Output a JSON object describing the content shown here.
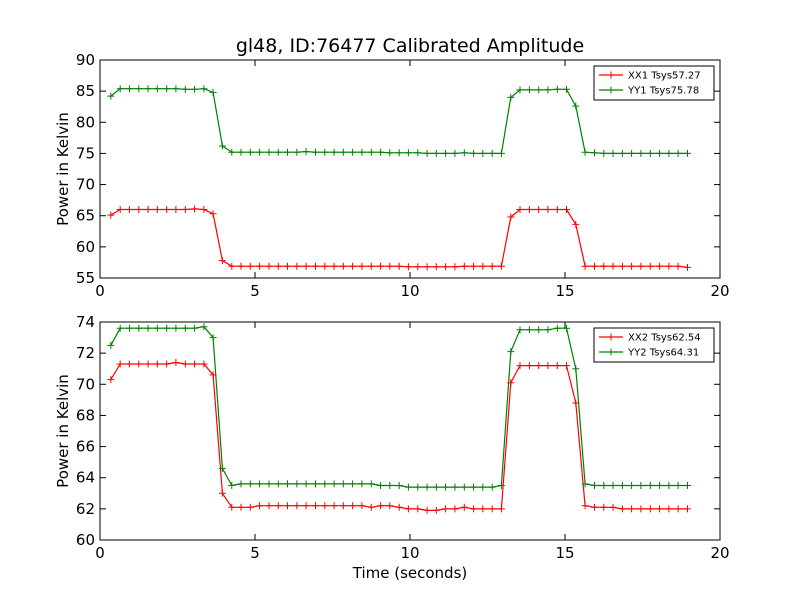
{
  "title": "gl48, ID:76477 Calibrated Amplitude",
  "xlabel": "Time (seconds)",
  "colors": {
    "red": "#ff0000",
    "green": "#008000"
  },
  "chart_data": [
    {
      "type": "line",
      "title": "gl48, ID:76477 Calibrated Amplitude",
      "xlabel": "",
      "ylabel": "Power in Kelvin",
      "xlim": [
        0,
        20
      ],
      "ylim": [
        55,
        90
      ],
      "xticks": [
        0,
        5,
        10,
        15,
        20
      ],
      "yticks": [
        55,
        60,
        65,
        70,
        75,
        80,
        85,
        90
      ],
      "legend_position": "top-right",
      "grid": false,
      "x": [
        0.35,
        0.65,
        0.95,
        1.25,
        1.55,
        1.85,
        2.15,
        2.45,
        2.75,
        3.05,
        3.35,
        3.65,
        3.95,
        4.25,
        4.55,
        4.85,
        5.15,
        5.45,
        5.75,
        6.05,
        6.35,
        6.65,
        6.95,
        7.25,
        7.55,
        7.85,
        8.15,
        8.45,
        8.75,
        9.05,
        9.35,
        9.65,
        9.95,
        10.25,
        10.55,
        10.85,
        11.15,
        11.45,
        11.75,
        12.05,
        12.35,
        12.65,
        12.95,
        13.25,
        13.55,
        13.85,
        14.15,
        14.45,
        14.75,
        15.05,
        15.35,
        15.65,
        15.95,
        16.25,
        16.55,
        16.85,
        17.15,
        17.45,
        17.75,
        18.05,
        18.35,
        18.65,
        18.95
      ],
      "series": [
        {
          "name": "XX1 Tsys57.27",
          "color": "red",
          "values": [
            65.1,
            66.0,
            66.0,
            66.0,
            66.0,
            66.0,
            66.0,
            66.0,
            66.0,
            66.1,
            66.0,
            65.3,
            57.8,
            56.9,
            56.9,
            56.9,
            56.9,
            56.9,
            56.9,
            56.9,
            56.9,
            56.9,
            56.9,
            56.9,
            56.9,
            56.9,
            56.9,
            56.9,
            56.9,
            56.9,
            56.9,
            56.9,
            56.8,
            56.8,
            56.8,
            56.8,
            56.8,
            56.8,
            56.9,
            56.9,
            56.9,
            56.9,
            56.9,
            64.8,
            66.0,
            66.0,
            66.0,
            66.0,
            66.0,
            66.0,
            63.6,
            56.9,
            56.9,
            56.9,
            56.9,
            56.9,
            56.9,
            56.9,
            56.9,
            56.9,
            56.9,
            56.9,
            56.7
          ]
        },
        {
          "name": "YY1 Tsys75.78",
          "color": "green",
          "values": [
            84.2,
            85.4,
            85.4,
            85.4,
            85.4,
            85.4,
            85.4,
            85.4,
            85.3,
            85.3,
            85.4,
            84.8,
            76.2,
            75.2,
            75.2,
            75.2,
            75.2,
            75.2,
            75.2,
            75.2,
            75.2,
            75.3,
            75.2,
            75.2,
            75.2,
            75.2,
            75.2,
            75.2,
            75.2,
            75.2,
            75.1,
            75.1,
            75.1,
            75.1,
            75.0,
            75.0,
            75.0,
            75.0,
            75.1,
            75.0,
            75.0,
            75.0,
            75.0,
            84.0,
            85.2,
            85.2,
            85.2,
            85.2,
            85.3,
            85.3,
            82.6,
            75.2,
            75.1,
            75.0,
            75.0,
            75.0,
            75.0,
            75.0,
            75.0,
            75.0,
            75.0,
            75.0,
            75.0
          ]
        }
      ]
    },
    {
      "type": "line",
      "title": "",
      "xlabel": "Time (seconds)",
      "ylabel": "Power in Kelvin",
      "xlim": [
        0,
        20
      ],
      "ylim": [
        60,
        74
      ],
      "xticks": [
        0,
        5,
        10,
        15,
        20
      ],
      "yticks": [
        60,
        62,
        64,
        66,
        68,
        70,
        72,
        74
      ],
      "legend_position": "top-right",
      "grid": false,
      "x": [
        0.35,
        0.65,
        0.95,
        1.25,
        1.55,
        1.85,
        2.15,
        2.45,
        2.75,
        3.05,
        3.35,
        3.65,
        3.95,
        4.25,
        4.55,
        4.85,
        5.15,
        5.45,
        5.75,
        6.05,
        6.35,
        6.65,
        6.95,
        7.25,
        7.55,
        7.85,
        8.15,
        8.45,
        8.75,
        9.05,
        9.35,
        9.65,
        9.95,
        10.25,
        10.55,
        10.85,
        11.15,
        11.45,
        11.75,
        12.05,
        12.35,
        12.65,
        12.95,
        13.25,
        13.55,
        13.85,
        14.15,
        14.45,
        14.75,
        15.05,
        15.35,
        15.65,
        15.95,
        16.25,
        16.55,
        16.85,
        17.15,
        17.45,
        17.75,
        18.05,
        18.35,
        18.65,
        18.95
      ],
      "series": [
        {
          "name": "XX2 Tsys62.54",
          "color": "red",
          "values": [
            70.3,
            71.3,
            71.3,
            71.3,
            71.3,
            71.3,
            71.3,
            71.4,
            71.3,
            71.3,
            71.3,
            70.6,
            63.0,
            62.1,
            62.1,
            62.1,
            62.2,
            62.2,
            62.2,
            62.2,
            62.2,
            62.2,
            62.2,
            62.2,
            62.2,
            62.2,
            62.2,
            62.2,
            62.1,
            62.2,
            62.2,
            62.1,
            62.0,
            62.0,
            61.9,
            61.9,
            62.0,
            62.0,
            62.1,
            62.0,
            62.0,
            62.0,
            62.0,
            70.1,
            71.2,
            71.2,
            71.2,
            71.2,
            71.2,
            71.2,
            68.8,
            62.2,
            62.1,
            62.1,
            62.1,
            62.0,
            62.0,
            62.0,
            62.0,
            62.0,
            62.0,
            62.0,
            62.0
          ]
        },
        {
          "name": "YY2 Tsys64.31",
          "color": "green",
          "values": [
            72.5,
            73.6,
            73.6,
            73.6,
            73.6,
            73.6,
            73.6,
            73.6,
            73.6,
            73.6,
            73.7,
            73.0,
            64.6,
            63.5,
            63.6,
            63.6,
            63.6,
            63.6,
            63.6,
            63.6,
            63.6,
            63.6,
            63.6,
            63.6,
            63.6,
            63.6,
            63.6,
            63.6,
            63.6,
            63.5,
            63.5,
            63.5,
            63.4,
            63.4,
            63.4,
            63.4,
            63.4,
            63.4,
            63.4,
            63.4,
            63.4,
            63.4,
            63.5,
            72.1,
            73.5,
            73.5,
            73.5,
            73.5,
            73.6,
            73.6,
            71.0,
            63.6,
            63.5,
            63.5,
            63.5,
            63.5,
            63.5,
            63.5,
            63.5,
            63.5,
            63.5,
            63.5,
            63.5
          ]
        }
      ]
    }
  ]
}
